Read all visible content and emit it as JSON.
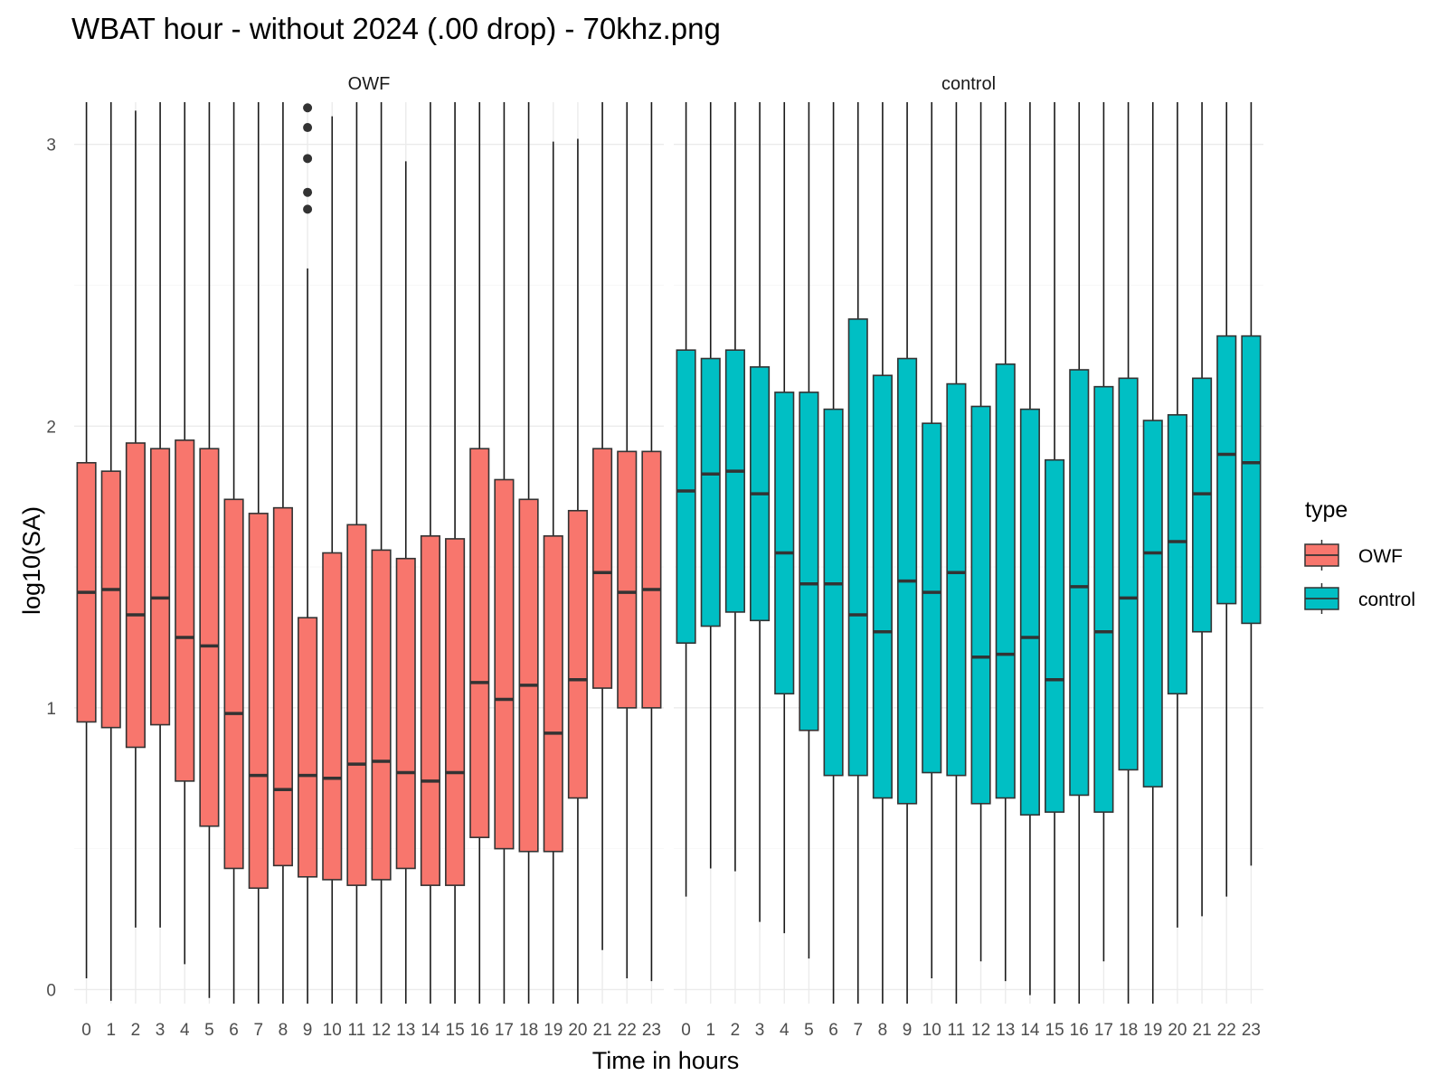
{
  "chart_data": {
    "type": "boxplot",
    "title": "WBAT hour - without 2024 (.00 drop) - 70khz.png",
    "xlabel": "Time in hours",
    "ylabel": "log10(SA)",
    "categories": [
      "0",
      "1",
      "2",
      "3",
      "4",
      "5",
      "6",
      "7",
      "8",
      "9",
      "10",
      "11",
      "12",
      "13",
      "14",
      "15",
      "16",
      "17",
      "18",
      "19",
      "20",
      "21",
      "22",
      "23"
    ],
    "ylim": [
      -0.05,
      3.15
    ],
    "yticks": [
      0,
      1,
      2,
      3
    ],
    "grid": true,
    "legend": {
      "title": "type",
      "position": "right",
      "entries": [
        {
          "label": "OWF",
          "color": "#F8766D"
        },
        {
          "label": "control",
          "color": "#00BFC4"
        }
      ]
    },
    "panels": [
      {
        "name": "OWF",
        "color": "#F8766D",
        "boxes": [
          {
            "hour": 0,
            "low": 0.04,
            "q1": 0.95,
            "median": 1.41,
            "q3": 1.87,
            "high": 3.15
          },
          {
            "hour": 1,
            "low": -0.04,
            "q1": 0.93,
            "median": 1.42,
            "q3": 1.84,
            "high": 3.15
          },
          {
            "hour": 2,
            "low": 0.22,
            "q1": 0.86,
            "median": 1.33,
            "q3": 1.94,
            "high": 3.12
          },
          {
            "hour": 3,
            "low": 0.22,
            "q1": 0.94,
            "median": 1.39,
            "q3": 1.92,
            "high": 3.15
          },
          {
            "hour": 4,
            "low": 0.09,
            "q1": 0.74,
            "median": 1.25,
            "q3": 1.95,
            "high": 3.15
          },
          {
            "hour": 5,
            "low": -0.03,
            "q1": 0.58,
            "median": 1.22,
            "q3": 1.92,
            "high": 3.15
          },
          {
            "hour": 6,
            "low": -0.05,
            "q1": 0.43,
            "median": 0.98,
            "q3": 1.74,
            "high": 3.15
          },
          {
            "hour": 7,
            "low": -0.05,
            "q1": 0.36,
            "median": 0.76,
            "q3": 1.69,
            "high": 3.15
          },
          {
            "hour": 8,
            "low": -0.05,
            "q1": 0.44,
            "median": 0.71,
            "q3": 1.71,
            "high": 3.15
          },
          {
            "hour": 9,
            "low": -0.05,
            "q1": 0.4,
            "median": 0.76,
            "q3": 1.32,
            "high": 2.56,
            "outliers": [
              2.77,
              2.83,
              2.95,
              3.06,
              3.13
            ]
          },
          {
            "hour": 10,
            "low": -0.05,
            "q1": 0.39,
            "median": 0.75,
            "q3": 1.55,
            "high": 3.1
          },
          {
            "hour": 11,
            "low": -0.05,
            "q1": 0.37,
            "median": 0.8,
            "q3": 1.65,
            "high": 3.15
          },
          {
            "hour": 12,
            "low": -0.05,
            "q1": 0.39,
            "median": 0.81,
            "q3": 1.56,
            "high": 3.15
          },
          {
            "hour": 13,
            "low": -0.05,
            "q1": 0.43,
            "median": 0.77,
            "q3": 1.53,
            "high": 2.94
          },
          {
            "hour": 14,
            "low": -0.05,
            "q1": 0.37,
            "median": 0.74,
            "q3": 1.61,
            "high": 3.15
          },
          {
            "hour": 15,
            "low": -0.05,
            "q1": 0.37,
            "median": 0.77,
            "q3": 1.6,
            "high": 3.15
          },
          {
            "hour": 16,
            "low": -0.05,
            "q1": 0.54,
            "median": 1.09,
            "q3": 1.92,
            "high": 3.15
          },
          {
            "hour": 17,
            "low": -0.05,
            "q1": 0.5,
            "median": 1.03,
            "q3": 1.81,
            "high": 3.15
          },
          {
            "hour": 18,
            "low": -0.05,
            "q1": 0.49,
            "median": 1.08,
            "q3": 1.74,
            "high": 3.15
          },
          {
            "hour": 19,
            "low": -0.05,
            "q1": 0.49,
            "median": 0.91,
            "q3": 1.61,
            "high": 3.01
          },
          {
            "hour": 20,
            "low": -0.05,
            "q1": 0.68,
            "median": 1.1,
            "q3": 1.7,
            "high": 3.02
          },
          {
            "hour": 21,
            "low": 0.14,
            "q1": 1.07,
            "median": 1.48,
            "q3": 1.92,
            "high": 3.15
          },
          {
            "hour": 22,
            "low": 0.04,
            "q1": 1.0,
            "median": 1.41,
            "q3": 1.91,
            "high": 3.15
          },
          {
            "hour": 23,
            "low": 0.03,
            "q1": 1.0,
            "median": 1.42,
            "q3": 1.91,
            "high": 3.15
          }
        ]
      },
      {
        "name": "control",
        "color": "#00BFC4",
        "boxes": [
          {
            "hour": 0,
            "low": 0.33,
            "q1": 1.23,
            "median": 1.77,
            "q3": 2.27,
            "high": 3.15
          },
          {
            "hour": 1,
            "low": 0.43,
            "q1": 1.29,
            "median": 1.83,
            "q3": 2.24,
            "high": 3.15
          },
          {
            "hour": 2,
            "low": 0.42,
            "q1": 1.34,
            "median": 1.84,
            "q3": 2.27,
            "high": 3.15
          },
          {
            "hour": 3,
            "low": 0.24,
            "q1": 1.31,
            "median": 1.76,
            "q3": 2.21,
            "high": 3.15
          },
          {
            "hour": 4,
            "low": 0.2,
            "q1": 1.05,
            "median": 1.55,
            "q3": 2.12,
            "high": 3.15
          },
          {
            "hour": 5,
            "low": 0.11,
            "q1": 0.92,
            "median": 1.44,
            "q3": 2.12,
            "high": 3.15
          },
          {
            "hour": 6,
            "low": -0.05,
            "q1": 0.76,
            "median": 1.44,
            "q3": 2.06,
            "high": 3.15
          },
          {
            "hour": 7,
            "low": -0.05,
            "q1": 0.76,
            "median": 1.33,
            "q3": 2.38,
            "high": 3.15
          },
          {
            "hour": 8,
            "low": -0.05,
            "q1": 0.68,
            "median": 1.27,
            "q3": 2.18,
            "high": 3.15
          },
          {
            "hour": 9,
            "low": -0.05,
            "q1": 0.66,
            "median": 1.45,
            "q3": 2.24,
            "high": 3.15
          },
          {
            "hour": 10,
            "low": 0.04,
            "q1": 0.77,
            "median": 1.41,
            "q3": 2.01,
            "high": 3.15
          },
          {
            "hour": 11,
            "low": -0.05,
            "q1": 0.76,
            "median": 1.48,
            "q3": 2.15,
            "high": 3.15
          },
          {
            "hour": 12,
            "low": 0.1,
            "q1": 0.66,
            "median": 1.18,
            "q3": 2.07,
            "high": 3.15
          },
          {
            "hour": 13,
            "low": 0.03,
            "q1": 0.68,
            "median": 1.19,
            "q3": 2.22,
            "high": 3.15
          },
          {
            "hour": 14,
            "low": -0.02,
            "q1": 0.62,
            "median": 1.25,
            "q3": 2.06,
            "high": 3.15
          },
          {
            "hour": 15,
            "low": -0.05,
            "q1": 0.63,
            "median": 1.1,
            "q3": 1.88,
            "high": 3.15
          },
          {
            "hour": 16,
            "low": -0.05,
            "q1": 0.69,
            "median": 1.43,
            "q3": 2.2,
            "high": 3.15
          },
          {
            "hour": 17,
            "low": 0.1,
            "q1": 0.63,
            "median": 1.27,
            "q3": 2.14,
            "high": 3.15
          },
          {
            "hour": 18,
            "low": -0.05,
            "q1": 0.78,
            "median": 1.39,
            "q3": 2.17,
            "high": 3.15
          },
          {
            "hour": 19,
            "low": -0.05,
            "q1": 0.72,
            "median": 1.55,
            "q3": 2.02,
            "high": 3.15
          },
          {
            "hour": 20,
            "low": 0.22,
            "q1": 1.05,
            "median": 1.59,
            "q3": 2.04,
            "high": 3.15
          },
          {
            "hour": 21,
            "low": 0.26,
            "q1": 1.27,
            "median": 1.76,
            "q3": 2.17,
            "high": 3.15
          },
          {
            "hour": 22,
            "low": 0.33,
            "q1": 1.37,
            "median": 1.9,
            "q3": 2.32,
            "high": 3.15
          },
          {
            "hour": 23,
            "low": 0.44,
            "q1": 1.3,
            "median": 1.87,
            "q3": 2.32,
            "high": 3.15
          }
        ]
      }
    ]
  }
}
